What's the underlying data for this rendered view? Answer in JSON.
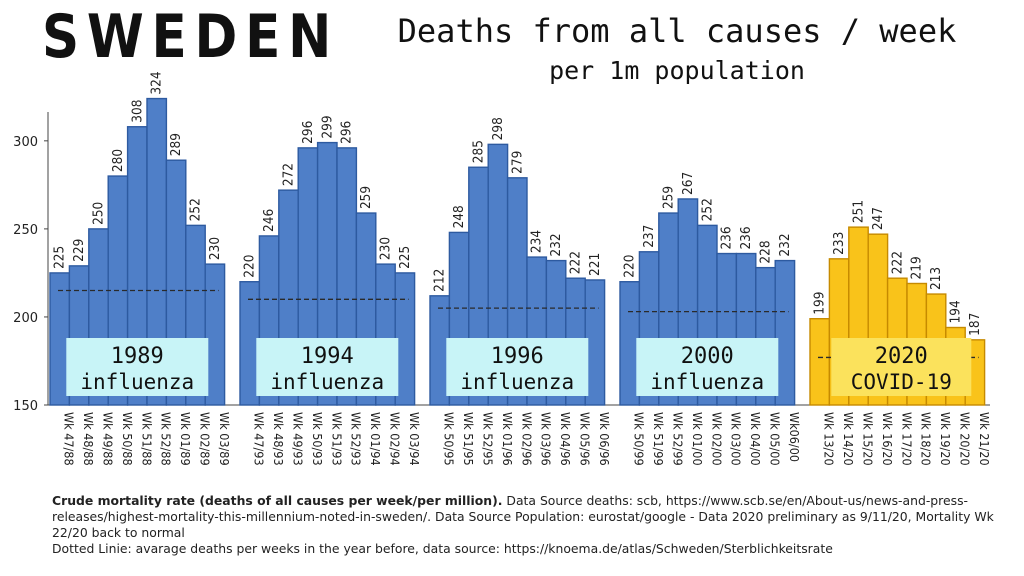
{
  "header": {
    "country": "SWEDEN",
    "title": "Deaths from all causes / week",
    "subtitle": "per 1m population"
  },
  "colors": {
    "influenza_bar": "#4f7fc8",
    "influenza_edge": "#2d5aa0",
    "covid_bar": "#f9c31a",
    "covid_edge": "#c68a00",
    "label_box": "#c8f4f7",
    "covid_label_box": "#fbe25c"
  },
  "chart_data": {
    "type": "bar",
    "ylim": [
      150,
      330
    ],
    "yticks": [
      150,
      200,
      250,
      300
    ],
    "grid": false,
    "groups": [
      {
        "label_line1": "1989",
        "label_line2": "influenza",
        "kind": "influenza",
        "baseline": 215,
        "categories": [
          "Wk 47/88",
          "Wk 48/88",
          "Wk 49/88",
          "Wk 50/88",
          "Wk 51/88",
          "Wk 52/88",
          "Wk 01/89",
          "Wk 02/89",
          "Wk 03/89"
        ],
        "values": [
          225,
          229,
          250,
          280,
          308,
          324,
          289,
          252,
          230
        ]
      },
      {
        "label_line1": "1994",
        "label_line2": "influenza",
        "kind": "influenza",
        "baseline": 210,
        "categories": [
          "Wk 47/93",
          "Wk 48/93",
          "Wk 49/93",
          "Wk 50/93",
          "Wk 51/93",
          "Wk 52/93",
          "Wk 01/94",
          "Wk 02/94",
          "Wk 03/94"
        ],
        "values": [
          220,
          246,
          272,
          296,
          299,
          296,
          259,
          230,
          225
        ]
      },
      {
        "label_line1": "1996",
        "label_line2": "influenza",
        "kind": "influenza",
        "baseline": 205,
        "categories": [
          "Wk 50/95",
          "Wk 51/95",
          "Wk 52/95",
          "Wk 01/96",
          "Wk 02/96",
          "Wk 03/96",
          "Wk 04/96",
          "Wk 05/96",
          "Wk 06/96"
        ],
        "values": [
          212,
          248,
          285,
          298,
          279,
          234,
          232,
          222,
          221
        ]
      },
      {
        "label_line1": "2000",
        "label_line2": "influenza",
        "kind": "influenza",
        "baseline": 203,
        "categories": [
          "Wk 50/99",
          "Wk 51/99",
          "Wk 52/99",
          "Wk 01/00",
          "Wk 02/00",
          "Wk 03/00",
          "Wk 04/00",
          "Wk 05/00",
          "Wk06/00"
        ],
        "values": [
          220,
          237,
          259,
          267,
          252,
          236,
          236,
          228,
          232
        ]
      },
      {
        "label_line1": "2020",
        "label_line2": "COVID-19",
        "kind": "covid",
        "baseline": 177,
        "categories": [
          "Wk 13/20",
          "Wk 14/20",
          "Wk 15/20",
          "Wk 16/20",
          "Wk 17/20",
          "Wk 18/20",
          "Wk 19/20",
          "Wk 20/20",
          "Wk 21/20"
        ],
        "values": [
          199,
          233,
          251,
          247,
          222,
          219,
          213,
          194,
          187
        ]
      }
    ]
  },
  "footnote": {
    "bold": "Crude mortality rate (deaths of all causes per week/per million).",
    "text": " Data Source deaths: scb, https://www.scb.se/en/About-us/news-and-press-releases/highest-mortality-this-millennium-noted-in-sweden/. Data Source Population: eurostat/google -  Data 2020 preliminary as 9/11/20, Mortality Wk 22/20 back to normal",
    "line2": "Dotted Linie: avarage deaths per weeks in the year before, data source: https://knoema.de/atlas/Schweden/Sterblichkeitsrate"
  }
}
